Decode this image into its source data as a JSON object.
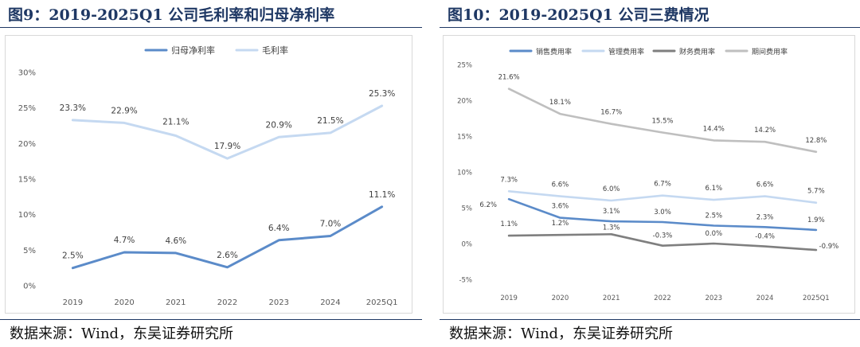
{
  "left": {
    "title": "图9：2019-2025Q1 公司毛利率和归母净利率",
    "source": "数据来源：Wind，东吴证券研究所"
  },
  "right": {
    "title": "图10：2019-2025Q1 公司三费情况",
    "source": "数据来源：Wind，东吴证券研究所"
  },
  "chart_data": [
    {
      "type": "line",
      "categories": [
        "2019",
        "2020",
        "2021",
        "2022",
        "2023",
        "2024",
        "2025Q1"
      ],
      "series": [
        {
          "name": "归母净利率",
          "values": [
            2.5,
            4.7,
            4.6,
            2.6,
            6.4,
            7.0,
            11.1
          ],
          "labels": [
            "2.5%",
            "4.7%",
            "4.6%",
            "2.6%",
            "6.4%",
            "7.0%",
            "11.1%"
          ],
          "color": "#5b8bc9"
        },
        {
          "name": "毛利率",
          "values": [
            23.3,
            22.9,
            21.1,
            17.9,
            20.9,
            21.5,
            25.3
          ],
          "labels": [
            "23.3%",
            "22.9%",
            "21.1%",
            "17.9%",
            "20.9%",
            "21.5%",
            "25.3%"
          ],
          "color": "#c5d9f1"
        }
      ],
      "yticks": [
        "0%",
        "5%",
        "10%",
        "15%",
        "20%",
        "25%",
        "30%"
      ],
      "ylim": [
        0,
        30
      ],
      "legend": "top-center",
      "grid": false
    },
    {
      "type": "line",
      "categories": [
        "2019",
        "2020",
        "2021",
        "2022",
        "2023",
        "2024",
        "2025Q1"
      ],
      "series": [
        {
          "name": "销售费用率",
          "values": [
            6.2,
            3.6,
            3.1,
            3.0,
            2.5,
            2.3,
            1.9
          ],
          "labels": [
            "6.2%",
            "3.6%",
            "3.1%",
            "3.0%",
            "2.5%",
            "2.3%",
            "1.9%"
          ],
          "color": "#5b8bc9"
        },
        {
          "name": "管理费用率",
          "values": [
            7.3,
            6.6,
            6.0,
            6.7,
            6.1,
            6.6,
            5.7
          ],
          "labels": [
            "7.3%",
            "6.6%",
            "6.0%",
            "6.7%",
            "6.1%",
            "6.6%",
            "5.7%"
          ],
          "color": "#c5d9f1"
        },
        {
          "name": "财务费用率",
          "values": [
            1.1,
            1.2,
            1.3,
            -0.3,
            0.0,
            -0.4,
            -0.9
          ],
          "labels": [
            "1.1%",
            "1.2%",
            "1.3%",
            "-0.3%",
            "0.0%",
            "-0.4%",
            "-0.9%"
          ],
          "color": "#7f7f7f"
        },
        {
          "name": "期间费用率",
          "values": [
            21.6,
            18.1,
            16.7,
            15.5,
            14.4,
            14.2,
            12.8
          ],
          "labels": [
            "21.6%",
            "18.1%",
            "16.7%",
            "15.5%",
            "14.4%",
            "14.2%",
            "12.8%"
          ],
          "color": "#bfbfbf"
        }
      ],
      "yticks": [
        "-5%",
        "0%",
        "5%",
        "10%",
        "15%",
        "20%",
        "25%"
      ],
      "ylim": [
        -5,
        25
      ],
      "legend": "top-center",
      "grid": false
    }
  ]
}
